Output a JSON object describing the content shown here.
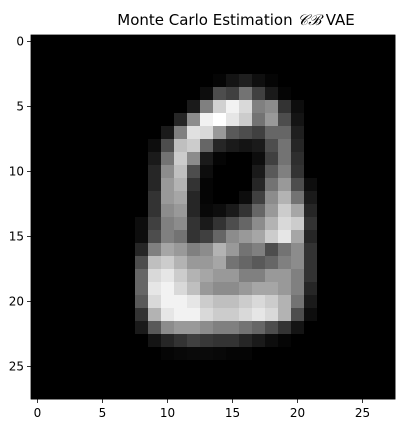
{
  "chart_data": {
    "type": "heatmap",
    "title_parts": [
      "Monte Carlo Estimation ",
      "𝒞ℬ",
      " VAE"
    ],
    "xlabel": "",
    "ylabel": "",
    "colormap": "gray",
    "value_range": [
      0,
      1
    ],
    "x_ticks": [
      "0",
      "5",
      "10",
      "15",
      "20",
      "25"
    ],
    "y_ticks": [
      "0",
      "5",
      "10",
      "15",
      "20",
      "25"
    ],
    "rows": 28,
    "cols": 28,
    "values": [
      [
        0,
        0,
        0,
        0,
        0,
        0,
        0,
        0,
        0,
        0,
        0,
        0,
        0,
        0,
        0,
        0,
        0,
        0,
        0,
        0,
        0,
        0,
        0,
        0,
        0,
        0,
        0,
        0
      ],
      [
        0,
        0,
        0,
        0,
        0,
        0,
        0,
        0,
        0,
        0,
        0,
        0,
        0,
        0,
        0,
        0,
        0,
        0,
        0,
        0,
        0,
        0,
        0,
        0,
        0,
        0,
        0,
        0
      ],
      [
        0,
        0,
        0,
        0,
        0,
        0,
        0,
        0,
        0,
        0,
        0,
        0,
        0,
        0,
        0,
        0,
        0,
        0,
        0,
        0,
        0,
        0,
        0,
        0,
        0,
        0,
        0,
        0
      ],
      [
        0,
        0,
        0,
        0,
        0,
        0,
        0,
        0,
        0,
        0,
        0,
        0,
        0,
        0,
        0.02,
        0.08,
        0.12,
        0.06,
        0.02,
        0,
        0,
        0,
        0,
        0,
        0,
        0,
        0,
        0
      ],
      [
        0,
        0,
        0,
        0,
        0,
        0,
        0,
        0,
        0,
        0,
        0,
        0,
        0,
        0.05,
        0.3,
        0.25,
        0.45,
        0.25,
        0.1,
        0.02,
        0,
        0,
        0,
        0,
        0,
        0,
        0,
        0
      ],
      [
        0,
        0,
        0,
        0,
        0,
        0,
        0,
        0,
        0,
        0,
        0,
        0,
        0.1,
        0.5,
        0.82,
        0.95,
        0.85,
        0.5,
        0.55,
        0.2,
        0.05,
        0,
        0,
        0,
        0,
        0,
        0,
        0
      ],
      [
        0,
        0,
        0,
        0,
        0,
        0,
        0,
        0,
        0,
        0,
        0,
        0.15,
        0.55,
        0.95,
        1.0,
        0.9,
        0.8,
        0.45,
        0.6,
        0.3,
        0.08,
        0,
        0,
        0,
        0,
        0,
        0,
        0
      ],
      [
        0,
        0,
        0,
        0,
        0,
        0,
        0,
        0,
        0,
        0,
        0.1,
        0.5,
        0.88,
        0.85,
        0.6,
        0.35,
        0.3,
        0.25,
        0.4,
        0.4,
        0.12,
        0,
        0,
        0,
        0,
        0,
        0,
        0
      ],
      [
        0,
        0,
        0,
        0,
        0,
        0,
        0,
        0,
        0,
        0.05,
        0.3,
        0.75,
        0.8,
        0.4,
        0.15,
        0.1,
        0.08,
        0.1,
        0.3,
        0.45,
        0.15,
        0,
        0,
        0,
        0,
        0,
        0,
        0
      ],
      [
        0,
        0,
        0,
        0,
        0,
        0,
        0,
        0,
        0,
        0.1,
        0.45,
        0.8,
        0.55,
        0.1,
        0.02,
        0,
        0,
        0.05,
        0.25,
        0.45,
        0.18,
        0,
        0,
        0,
        0,
        0,
        0,
        0
      ],
      [
        0,
        0,
        0,
        0,
        0,
        0,
        0,
        0,
        0,
        0.15,
        0.55,
        0.75,
        0.3,
        0.05,
        0,
        0,
        0,
        0.1,
        0.35,
        0.5,
        0.2,
        0,
        0,
        0,
        0,
        0,
        0,
        0
      ],
      [
        0,
        0,
        0,
        0,
        0,
        0,
        0,
        0,
        0,
        0.15,
        0.6,
        0.7,
        0.2,
        0.02,
        0,
        0,
        0,
        0.15,
        0.45,
        0.6,
        0.3,
        0.05,
        0,
        0,
        0,
        0,
        0,
        0
      ],
      [
        0,
        0,
        0,
        0,
        0,
        0,
        0,
        0,
        0,
        0.2,
        0.6,
        0.65,
        0.15,
        0.02,
        0,
        0,
        0.05,
        0.25,
        0.55,
        0.7,
        0.45,
        0.1,
        0,
        0,
        0,
        0,
        0,
        0
      ],
      [
        0,
        0,
        0,
        0,
        0,
        0,
        0,
        0,
        0,
        0.2,
        0.55,
        0.6,
        0.15,
        0.03,
        0.05,
        0.1,
        0.2,
        0.4,
        0.6,
        0.8,
        0.65,
        0.15,
        0,
        0,
        0,
        0,
        0,
        0
      ],
      [
        0,
        0,
        0,
        0,
        0,
        0,
        0,
        0,
        0.05,
        0.25,
        0.5,
        0.55,
        0.2,
        0.1,
        0.2,
        0.3,
        0.4,
        0.55,
        0.7,
        0.85,
        0.8,
        0.2,
        0,
        0,
        0,
        0,
        0,
        0
      ],
      [
        0,
        0,
        0,
        0,
        0,
        0,
        0,
        0,
        0.05,
        0.3,
        0.5,
        0.45,
        0.2,
        0.25,
        0.4,
        0.55,
        0.6,
        0.65,
        0.8,
        0.9,
        0.65,
        0.15,
        0,
        0,
        0,
        0,
        0,
        0
      ],
      [
        0,
        0,
        0,
        0,
        0,
        0,
        0,
        0,
        0.15,
        0.5,
        0.65,
        0.6,
        0.5,
        0.55,
        0.7,
        0.6,
        0.45,
        0.5,
        0.3,
        0.45,
        0.55,
        0.2,
        0,
        0,
        0,
        0,
        0,
        0
      ],
      [
        0,
        0,
        0,
        0,
        0,
        0,
        0,
        0,
        0.3,
        0.75,
        0.8,
        0.7,
        0.6,
        0.6,
        0.65,
        0.45,
        0.4,
        0.35,
        0.4,
        0.5,
        0.55,
        0.2,
        0,
        0,
        0,
        0,
        0,
        0
      ],
      [
        0,
        0,
        0,
        0,
        0,
        0,
        0,
        0,
        0.4,
        0.85,
        0.9,
        0.8,
        0.7,
        0.65,
        0.6,
        0.6,
        0.5,
        0.5,
        0.6,
        0.6,
        0.5,
        0.2,
        0,
        0,
        0,
        0,
        0,
        0
      ],
      [
        0,
        0,
        0,
        0,
        0,
        0,
        0,
        0,
        0.4,
        0.9,
        0.95,
        0.85,
        0.75,
        0.6,
        0.55,
        0.55,
        0.6,
        0.65,
        0.65,
        0.6,
        0.5,
        0.15,
        0,
        0,
        0,
        0,
        0,
        0
      ],
      [
        0,
        0,
        0,
        0,
        0,
        0,
        0,
        0,
        0.35,
        0.85,
        0.95,
        0.95,
        0.9,
        0.8,
        0.75,
        0.75,
        0.8,
        0.85,
        0.8,
        0.7,
        0.45,
        0.1,
        0,
        0,
        0,
        0,
        0,
        0
      ],
      [
        0,
        0,
        0,
        0,
        0,
        0,
        0,
        0,
        0.2,
        0.7,
        0.9,
        0.95,
        0.95,
        0.85,
        0.8,
        0.8,
        0.85,
        0.9,
        0.85,
        0.7,
        0.3,
        0.05,
        0,
        0,
        0,
        0,
        0,
        0
      ],
      [
        0,
        0,
        0,
        0,
        0,
        0,
        0,
        0,
        0.1,
        0.35,
        0.55,
        0.6,
        0.6,
        0.55,
        0.5,
        0.5,
        0.45,
        0.4,
        0.3,
        0.2,
        0.08,
        0,
        0,
        0,
        0,
        0,
        0,
        0
      ],
      [
        0,
        0,
        0,
        0,
        0,
        0,
        0,
        0,
        0,
        0.08,
        0.15,
        0.2,
        0.25,
        0.22,
        0.2,
        0.2,
        0.15,
        0.1,
        0.05,
        0.02,
        0,
        0,
        0,
        0,
        0,
        0,
        0,
        0
      ],
      [
        0,
        0,
        0,
        0,
        0,
        0,
        0,
        0,
        0,
        0,
        0.02,
        0.03,
        0.04,
        0.04,
        0.03,
        0.02,
        0.02,
        0,
        0,
        0,
        0,
        0,
        0,
        0,
        0,
        0,
        0,
        0
      ],
      [
        0,
        0,
        0,
        0,
        0,
        0,
        0,
        0,
        0,
        0,
        0,
        0,
        0,
        0,
        0,
        0,
        0,
        0,
        0,
        0,
        0,
        0,
        0,
        0,
        0,
        0,
        0,
        0
      ],
      [
        0,
        0,
        0,
        0,
        0,
        0,
        0,
        0,
        0,
        0,
        0,
        0,
        0,
        0,
        0,
        0,
        0,
        0,
        0,
        0,
        0,
        0,
        0,
        0,
        0,
        0,
        0,
        0
      ],
      [
        0,
        0,
        0,
        0,
        0,
        0,
        0,
        0,
        0,
        0,
        0,
        0,
        0,
        0,
        0,
        0,
        0,
        0,
        0,
        0,
        0,
        0,
        0,
        0,
        0,
        0,
        0,
        0
      ]
    ]
  }
}
